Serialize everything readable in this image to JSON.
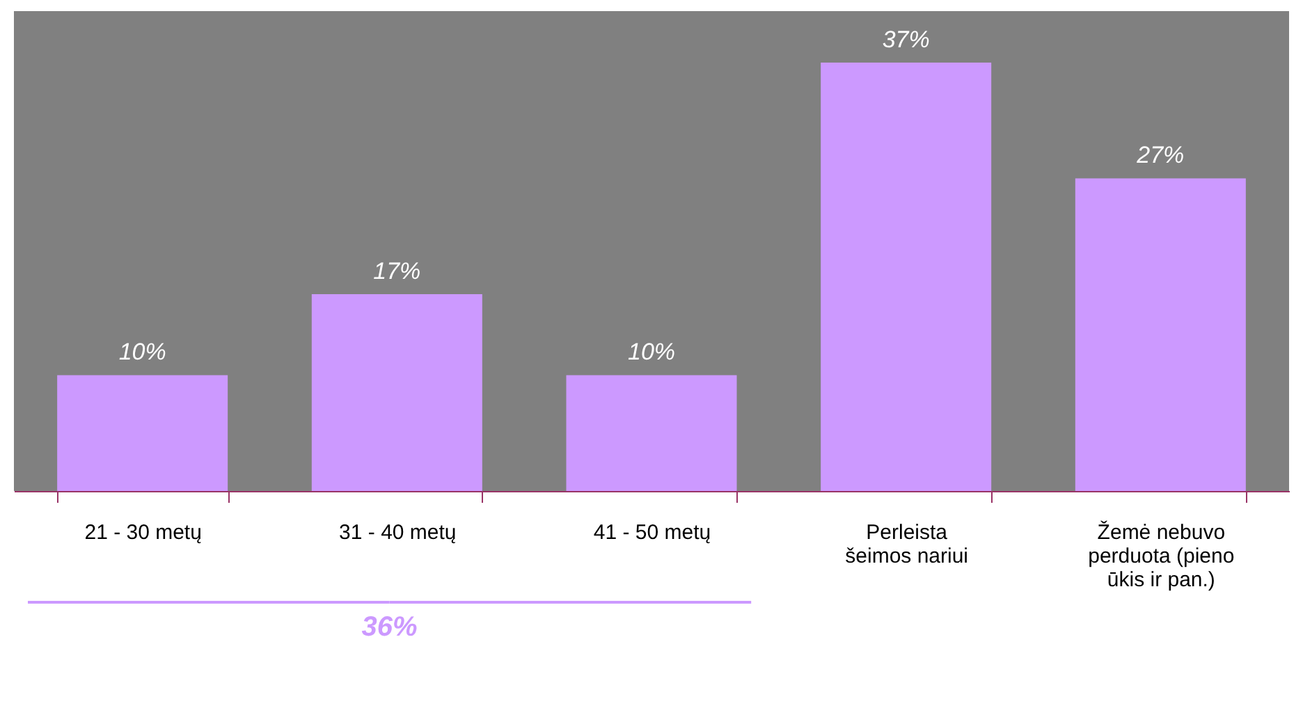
{
  "chart_data": {
    "type": "bar",
    "categories": [
      "21 - 30 metų",
      "31 - 40 metų",
      "41 - 50 metų",
      "Perleista\nšeimos nariui",
      "Žemė nebuvo\nperduota (pieno\nūkis ir pan.)"
    ],
    "values": [
      10,
      17,
      10,
      37,
      27
    ],
    "value_labels": [
      "10%",
      "17%",
      "10%",
      "37%",
      "27%"
    ],
    "color": "#cc99ff",
    "annotations": [
      "36%"
    ]
  }
}
